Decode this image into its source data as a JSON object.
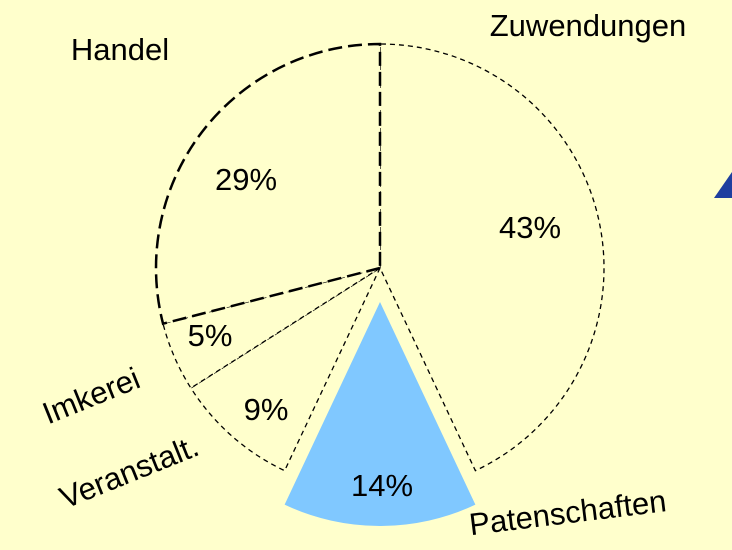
{
  "chart_data": {
    "type": "pie",
    "categories": [
      "Zuwendungen",
      "Patenschaften",
      "Veranstalt.",
      "Imkerei",
      "Handel"
    ],
    "values": [
      43,
      14,
      9,
      5,
      29
    ],
    "value_labels": [
      "43%",
      "14%",
      "9%",
      "5%",
      "29%"
    ],
    "colors": [
      "#ffffcc",
      "#80c8ff",
      "#ffffcc",
      "#ffffcc",
      "#ffffcc"
    ],
    "exploded": [
      false,
      true,
      false,
      false,
      false
    ]
  }
}
